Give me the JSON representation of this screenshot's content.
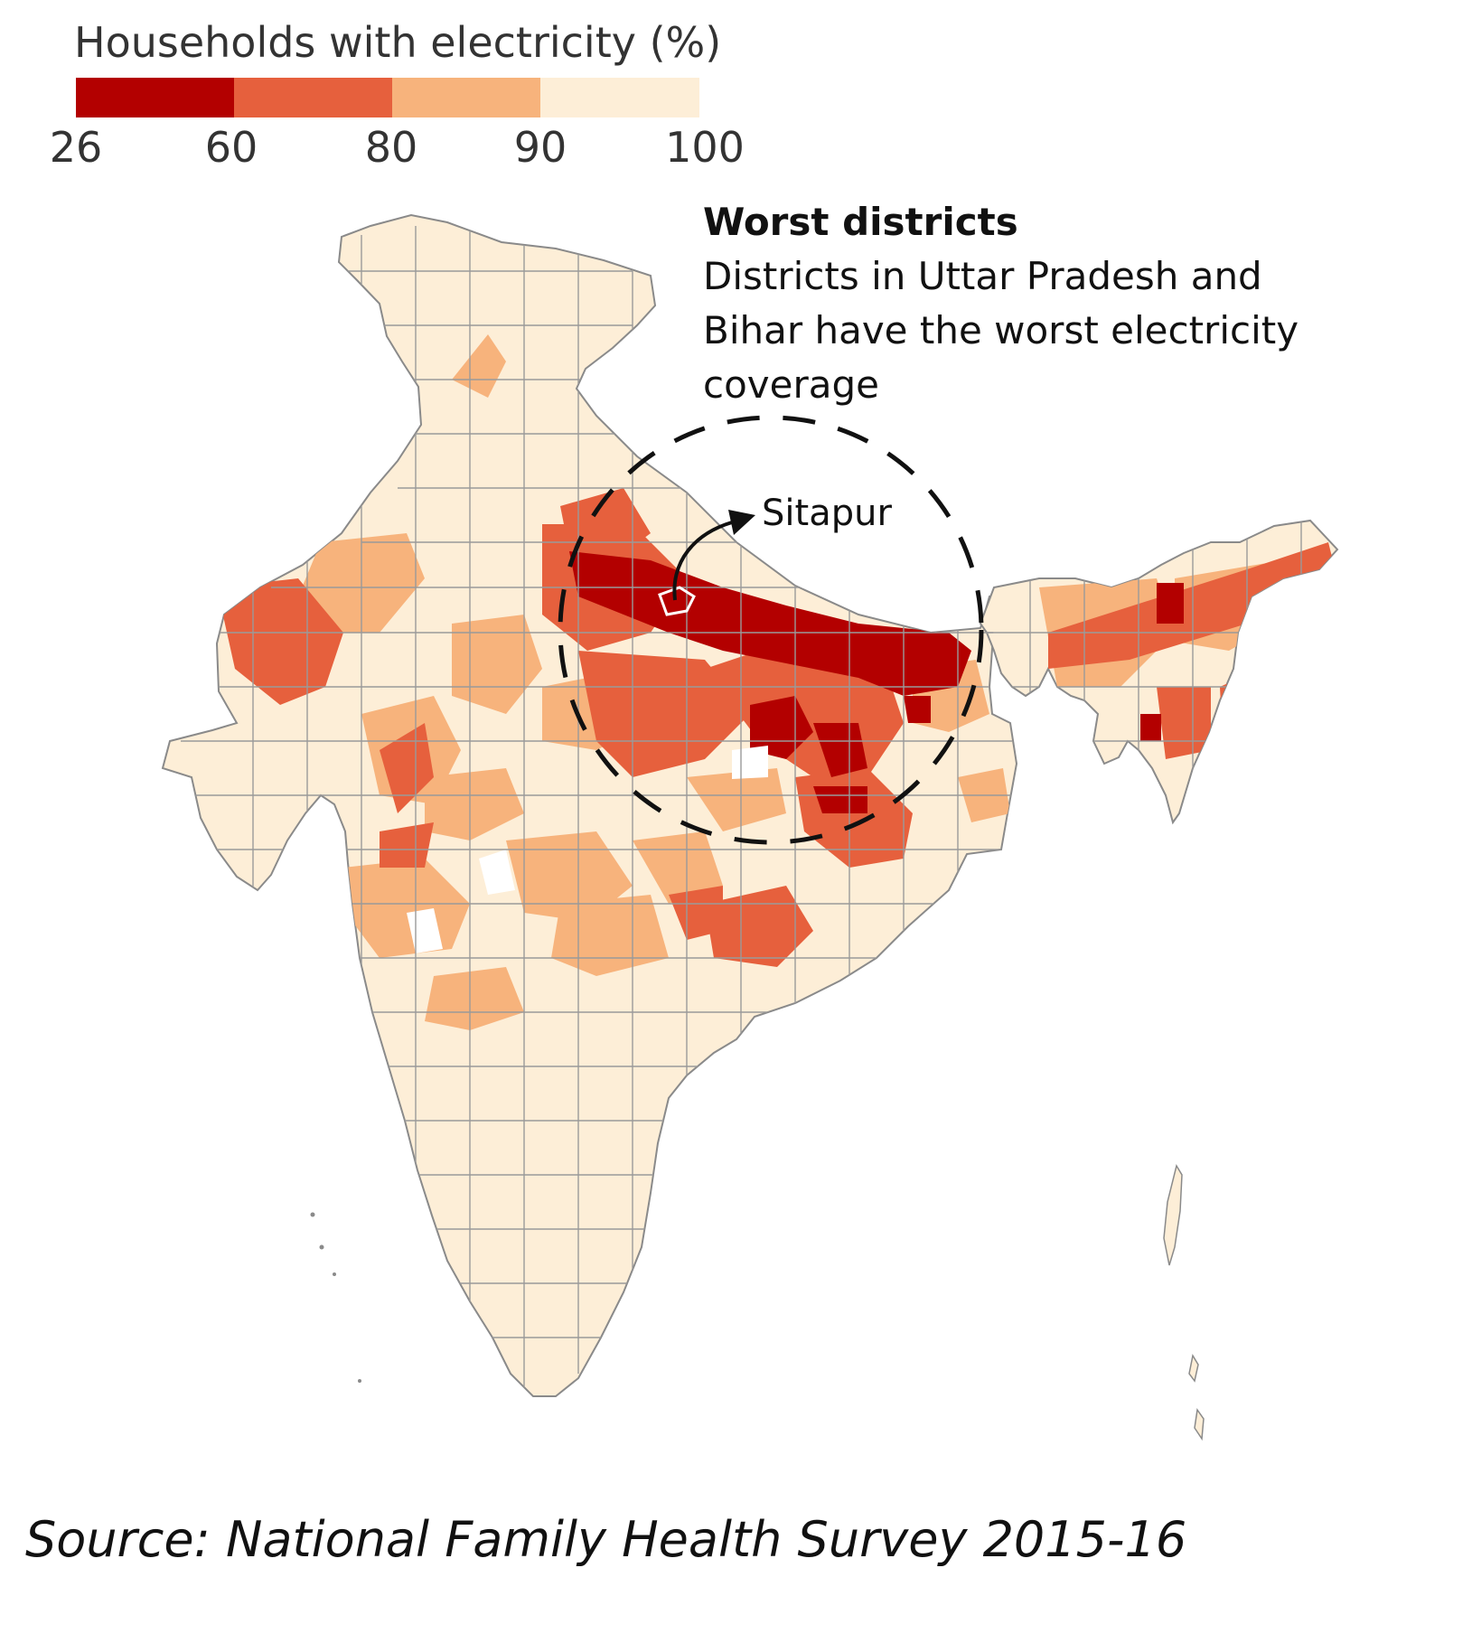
{
  "legend": {
    "title": "Households with electricity (%)",
    "ticks": [
      "26",
      "60",
      "80",
      "90",
      "100"
    ],
    "bins": [
      {
        "from": 26,
        "to": 60,
        "color": "#b30000"
      },
      {
        "from": 60,
        "to": 80,
        "color": "#e6603d"
      },
      {
        "from": 80,
        "to": 90,
        "color": "#f7b37c"
      },
      {
        "from": 90,
        "to": 100,
        "color": "#fdeed7"
      }
    ]
  },
  "annotation": {
    "title": "Worst districts",
    "body": "Districts in Uttar Pradesh and Bihar have the worst electricity coverage"
  },
  "callout": {
    "label": "Sitapur"
  },
  "map": {
    "region": "India",
    "unit": "districts",
    "border_color": "#8a8a8a"
  },
  "source": "Source: National Family Health Survey 2015-16"
}
